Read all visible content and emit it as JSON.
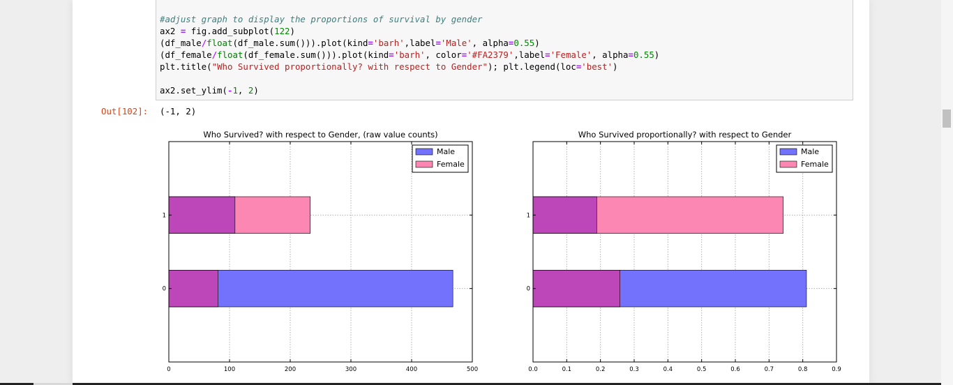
{
  "code_cell": {
    "lines": [
      "#adjust graph to display the proportions of survival by gender",
      "ax2 = fig.add_subplot(122)",
      "(df_male/float(df_male.sum())).plot(kind='barh',label='Male', alpha=0.55)",
      "(df_female/float(df_female.sum())).plot(kind='barh', color='#FA2379',label='Female', alpha=0.55)",
      "plt.title(\"Who Survived proportionally? with respect to Gender\"); plt.legend(loc='best')",
      "",
      "ax2.set_ylim(-1, 2)"
    ]
  },
  "output": {
    "prompt": "Out[102]:",
    "text": "(-1, 2)"
  },
  "colors": {
    "male_bar": "#7272fc",
    "female_bar": "#fc87b3",
    "overlap": "#bd46b9",
    "bar_edge": "#000000"
  },
  "chart_data": [
    {
      "type": "bar",
      "orientation": "horizontal",
      "title": "Who Survived? with respect to Gender, (raw value counts)",
      "categories": [
        "0",
        "1"
      ],
      "series": [
        {
          "name": "Male",
          "values": [
            468,
            109
          ]
        },
        {
          "name": "Female",
          "values": [
            81,
            233
          ]
        }
      ],
      "xlim": [
        0,
        500
      ],
      "ylim": [
        -1,
        2
      ],
      "xticks": [
        0,
        100,
        200,
        300,
        400,
        500
      ],
      "yticks": [
        0,
        1
      ],
      "grid": true,
      "legend": "top-right"
    },
    {
      "type": "bar",
      "orientation": "horizontal",
      "title": "Who Survived proportionally? with respect to Gender",
      "categories": [
        "0",
        "1"
      ],
      "series": [
        {
          "name": "Male",
          "values": [
            0.811,
            0.189
          ]
        },
        {
          "name": "Female",
          "values": [
            0.258,
            0.742
          ]
        }
      ],
      "xlim": [
        0,
        0.9
      ],
      "ylim": [
        -1,
        2
      ],
      "xticks": [
        0.0,
        0.1,
        0.2,
        0.3,
        0.4,
        0.5,
        0.6,
        0.7,
        0.8,
        0.9
      ],
      "yticks": [
        0,
        1
      ],
      "grid": true,
      "legend": "top-right"
    }
  ]
}
